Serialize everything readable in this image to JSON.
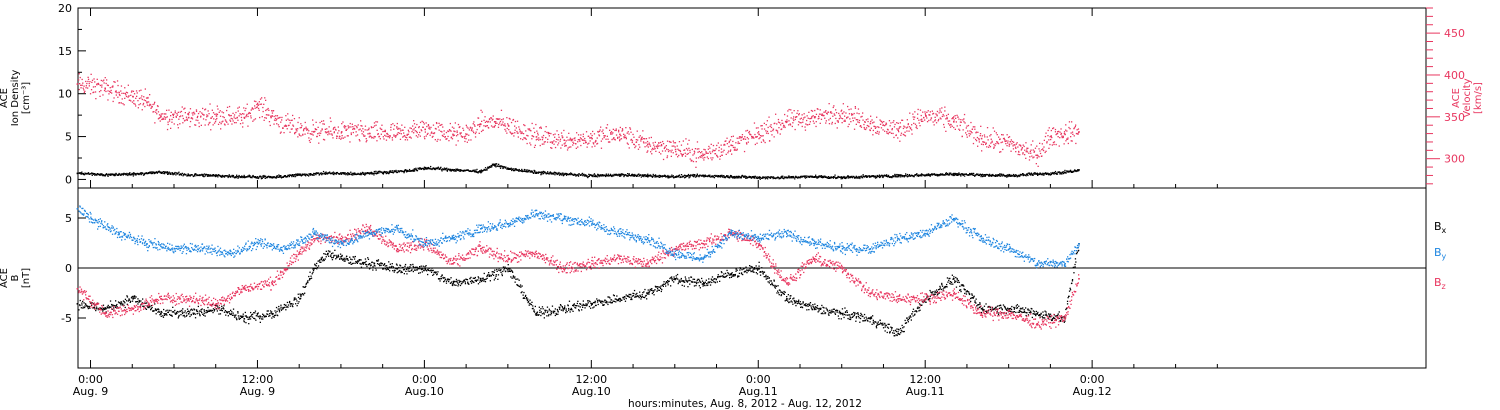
{
  "colors": {
    "black": "#000000",
    "pink": "#e8365f",
    "blue": "#1f86e0",
    "frame": "#000000"
  },
  "x_axis": {
    "title": "hours:minutes, Aug. 8, 2012 - Aug. 12, 2012",
    "range_hours": [
      -0.9,
      96.0
    ],
    "ticks": [
      {
        "hour": 0,
        "time": "0:00",
        "date": "Aug. 9"
      },
      {
        "hour": 12,
        "time": "12:00",
        "date": "Aug. 9"
      },
      {
        "hour": 24,
        "time": "0:00",
        "date": "Aug.10"
      },
      {
        "hour": 36,
        "time": "12:00",
        "date": "Aug.10"
      },
      {
        "hour": 48,
        "time": "0:00",
        "date": "Aug.11"
      },
      {
        "hour": 60,
        "time": "12:00",
        "date": "Aug.11"
      },
      {
        "hour": 72,
        "time": "0:00",
        "date": "Aug.12"
      }
    ]
  },
  "chart_data": [
    {
      "type": "scatter",
      "panel": "top",
      "ylabel_left": [
        "ACE",
        "Ion Density",
        "[cm⁻³]"
      ],
      "ylabel_right": [
        "ACE",
        "Velocity",
        "[km/s]"
      ],
      "ylim_left": [
        -1,
        20
      ],
      "ylim_right": [
        265,
        480
      ],
      "yticks_left": [
        0,
        5,
        10,
        15,
        20
      ],
      "yticks_right": [
        300,
        350,
        400,
        450
      ],
      "series": [
        {
          "color": "black",
          "axis": "left",
          "x": [
            -1,
            1,
            3,
            5,
            7,
            9,
            11,
            13,
            15,
            17,
            19,
            21,
            23,
            24,
            26,
            28,
            29,
            30,
            32,
            34,
            36,
            38,
            40,
            42,
            44,
            46,
            48,
            50,
            52,
            54,
            56,
            58,
            60,
            62,
            64,
            66,
            68,
            70,
            71
          ],
          "y": [
            0.8,
            0.6,
            0.7,
            0.9,
            0.6,
            0.5,
            0.4,
            0.3,
            0.6,
            0.8,
            0.7,
            0.9,
            1.1,
            1.4,
            1.2,
            1.0,
            1.8,
            1.3,
            0.9,
            0.7,
            0.5,
            0.6,
            0.5,
            0.4,
            0.5,
            0.4,
            0.3,
            0.3,
            0.4,
            0.3,
            0.4,
            0.5,
            0.6,
            0.7,
            0.6,
            0.5,
            0.7,
            0.9,
            1.2
          ]
        },
        {
          "color": "pink",
          "axis": "right",
          "x": [
            -1,
            1,
            2,
            3,
            4,
            5,
            7,
            9,
            11,
            12,
            13,
            14,
            16,
            18,
            20,
            22,
            24,
            26,
            27,
            28,
            29,
            30,
            32,
            34,
            36,
            38,
            40,
            42,
            44,
            46,
            48,
            50,
            52,
            54,
            56,
            58,
            60,
            62,
            64,
            66,
            68,
            69,
            70,
            71
          ],
          "y": [
            390,
            385,
            380,
            375,
            368,
            352,
            350,
            352,
            350,
            365,
            352,
            340,
            333,
            333,
            331,
            330,
            336,
            330,
            330,
            342,
            345,
            340,
            327,
            323,
            325,
            330,
            318,
            312,
            305,
            317,
            330,
            345,
            350,
            355,
            343,
            335,
            352,
            345,
            325,
            318,
            305,
            328,
            330,
            333
          ]
        }
      ]
    },
    {
      "type": "scatter",
      "panel": "bottom",
      "ylabel_left": [
        "ACE",
        "B",
        "[nT]"
      ],
      "ylim": [
        -10,
        8
      ],
      "yticks": [
        -5,
        0,
        5
      ],
      "zero_line": true,
      "legend_labels": [
        "Bx",
        "By",
        "Bz"
      ],
      "series": [
        {
          "color": "black",
          "legend": "Bx",
          "x": [
            -1,
            1,
            3,
            5,
            7,
            9,
            11,
            13,
            15,
            16,
            17,
            18,
            20,
            22,
            24,
            26,
            28,
            30,
            32,
            34,
            36,
            38,
            40,
            42,
            44,
            46,
            48,
            50,
            52,
            54,
            56,
            58,
            60,
            62,
            64,
            66,
            68,
            70,
            71
          ],
          "y": [
            -3.5,
            -4.0,
            -3.0,
            -4.5,
            -4.5,
            -4.0,
            -5.0,
            -4.5,
            -3.0,
            0.0,
            1.5,
            1.0,
            0.5,
            0.0,
            0.0,
            -1.5,
            -1.0,
            0.0,
            -4.5,
            -4.0,
            -3.5,
            -3.0,
            -2.5,
            -1.0,
            -1.5,
            -0.5,
            0.0,
            -3.0,
            -4.0,
            -4.5,
            -5.0,
            -6.5,
            -3.0,
            -1.0,
            -4.0,
            -4.0,
            -4.5,
            -5.0,
            2.5
          ]
        },
        {
          "color": "blue",
          "legend": "By",
          "x": [
            -1,
            0,
            2,
            4,
            6,
            8,
            10,
            12,
            14,
            16,
            18,
            20,
            22,
            24,
            26,
            28,
            30,
            32,
            34,
            36,
            38,
            40,
            42,
            44,
            46,
            48,
            50,
            52,
            54,
            56,
            58,
            60,
            62,
            64,
            66,
            68,
            70,
            71
          ],
          "y": [
            6.0,
            5.0,
            3.5,
            2.5,
            2.0,
            2.0,
            1.5,
            2.5,
            2.0,
            3.5,
            2.5,
            3.5,
            4.0,
            2.5,
            3.0,
            4.0,
            4.5,
            5.5,
            5.0,
            4.5,
            3.5,
            3.0,
            1.5,
            1.0,
            3.5,
            3.0,
            3.5,
            2.5,
            2.0,
            2.0,
            3.0,
            3.5,
            5.0,
            3.0,
            2.0,
            0.5,
            0.5,
            2.5
          ]
        },
        {
          "color": "pink",
          "legend": "Bz",
          "x": [
            -1,
            1,
            3,
            5,
            7,
            9,
            11,
            13,
            14,
            15,
            16,
            18,
            20,
            22,
            24,
            26,
            28,
            30,
            32,
            34,
            36,
            38,
            40,
            42,
            44,
            46,
            48,
            50,
            52,
            54,
            56,
            58,
            60,
            62,
            64,
            66,
            68,
            70,
            71
          ],
          "y": [
            -2.0,
            -4.5,
            -4.0,
            -3.0,
            -3.0,
            -3.5,
            -2.0,
            -1.5,
            0.0,
            1.5,
            3.0,
            3.0,
            4.0,
            2.0,
            2.5,
            0.5,
            2.0,
            1.0,
            1.5,
            0.0,
            0.5,
            1.0,
            0.5,
            2.0,
            2.5,
            3.5,
            2.5,
            -1.5,
            1.0,
            0.0,
            -2.5,
            -3.0,
            -3.0,
            -2.5,
            -4.5,
            -4.5,
            -5.5,
            -5.0,
            -1.0
          ]
        }
      ]
    }
  ]
}
